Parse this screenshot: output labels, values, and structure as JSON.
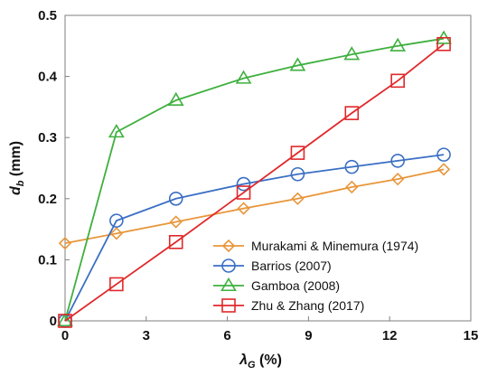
{
  "chart_data": {
    "type": "line",
    "title": "",
    "xlabel": {
      "symbol": "λ",
      "subscript": "G",
      "unit": " (%)"
    },
    "ylabel": {
      "symbol": "d",
      "subscript": "b",
      "unit": " (mm)"
    },
    "xlim": [
      0,
      15
    ],
    "ylim": [
      0,
      0.5
    ],
    "xticks": [
      0,
      3,
      6,
      9,
      12,
      15
    ],
    "yticks": [
      0,
      0.1,
      0.2,
      0.3,
      0.4,
      0.5
    ],
    "xtick_labels": [
      "0",
      "3",
      "6",
      "9",
      "12",
      "15"
    ],
    "ytick_labels": [
      "0",
      "0.1",
      "0.2",
      "0.3",
      "0.4",
      "0.5"
    ],
    "grid": false,
    "legend_position": "bottom-right",
    "series": [
      {
        "name": "Murakami & Minemura (1974)",
        "color": "#E8963A",
        "marker": "diamond",
        "x": [
          0,
          1.9,
          4.1,
          6.6,
          8.6,
          10.6,
          12.3,
          14.0
        ],
        "y": [
          0.127,
          0.143,
          0.162,
          0.184,
          0.2,
          0.219,
          0.232,
          0.248
        ]
      },
      {
        "name": "Barrios (2007)",
        "color": "#3A6FC4",
        "marker": "circle",
        "x": [
          0,
          1.9,
          4.1,
          6.6,
          8.6,
          10.6,
          12.3,
          14.0
        ],
        "y": [
          0,
          0.164,
          0.2,
          0.224,
          0.24,
          0.252,
          0.262,
          0.272
        ]
      },
      {
        "name": "Gamboa (2008)",
        "color": "#3EB03E",
        "marker": "triangle",
        "x": [
          0,
          1.9,
          4.1,
          6.6,
          8.6,
          10.6,
          12.3,
          14.0
        ],
        "y": [
          0,
          0.309,
          0.361,
          0.397,
          0.418,
          0.436,
          0.45,
          0.462
        ]
      },
      {
        "name": "Zhu & Zhang (2017)",
        "color": "#E0282A",
        "marker": "square",
        "x": [
          0,
          1.9,
          4.1,
          6.6,
          8.6,
          10.6,
          12.3,
          14.0
        ],
        "y": [
          0,
          0.06,
          0.129,
          0.21,
          0.275,
          0.34,
          0.393,
          0.453
        ]
      }
    ]
  }
}
